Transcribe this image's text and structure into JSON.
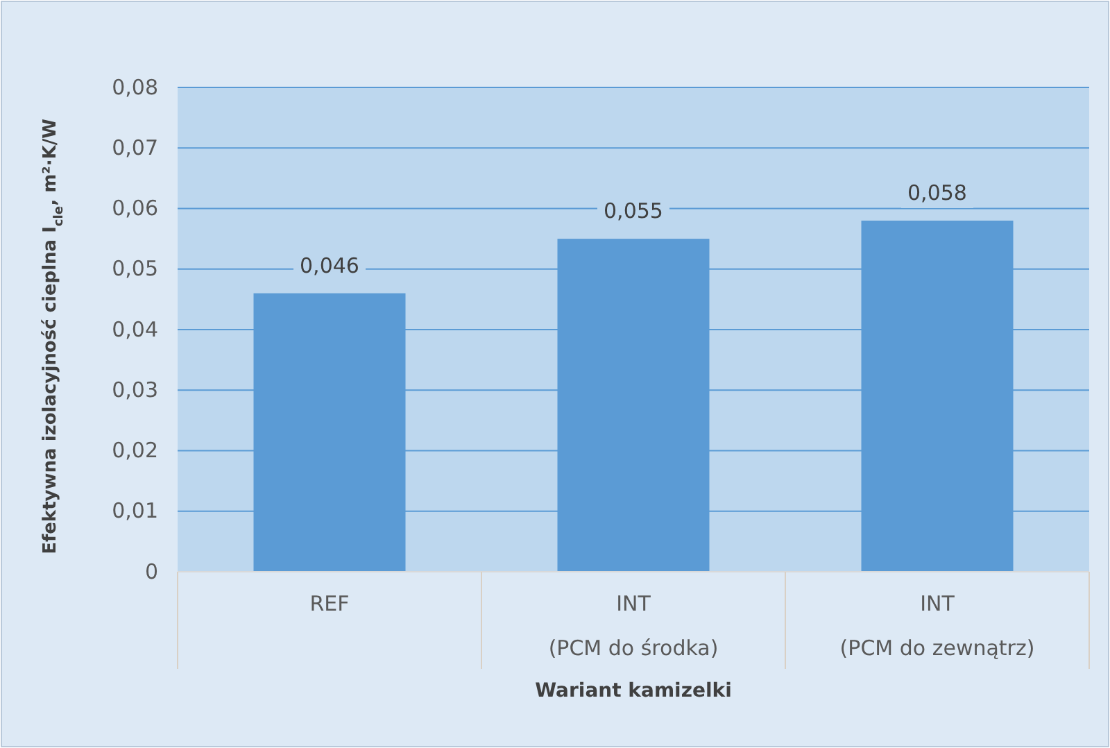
{
  "chart_data": {
    "type": "bar",
    "xlabel": "Wariant kamizelki",
    "ylabel": "Efektywna izolacyjność cieplna I$_{cle}$, m²·K/W",
    "categories": [
      "REF\n",
      "INT\n(PCM do środka)",
      "INT\n(PCM do zewnątrz)"
    ],
    "values": [
      0.046,
      0.055,
      0.058
    ],
    "color": "#5b9bd5",
    "value_labels": [
      "0,046",
      "0,055",
      "0,058"
    ],
    "ylim": [
      0,
      0.08
    ],
    "yticks": [
      0,
      {
        "value": 0.01,
        "label": "0,01"
      },
      {
        "value": 0.02,
        "label": "0,02"
      },
      {
        "value": 0.03,
        "label": "0,03"
      },
      {
        "value": 0.04,
        "label": "0,04"
      },
      {
        "value": 0.05,
        "label": "0,05"
      },
      {
        "value": 0.06,
        "label": "0,06"
      },
      {
        "value": 0.07,
        "label": "0,07"
      },
      {
        "value": 0.08,
        "label": "0,08"
      }
    ],
    "grid": "y"
  }
}
